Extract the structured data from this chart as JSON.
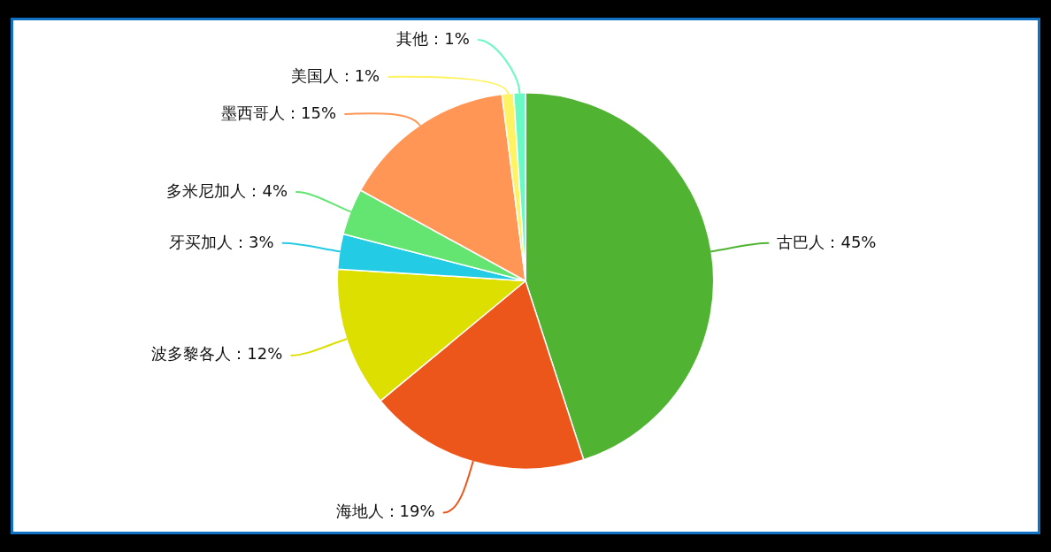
{
  "chart_data": {
    "type": "pie",
    "categories": [
      "古巴人",
      "海地人",
      "波多黎各人",
      "牙买加人",
      "多米尼加人",
      "墨西哥人",
      "美国人",
      "其他"
    ],
    "values": [
      45,
      19,
      12,
      3,
      4,
      15,
      1,
      1
    ],
    "colors": [
      "#50b432",
      "#ed561b",
      "#dddf00",
      "#24cbe5",
      "#64e572",
      "#ff9655",
      "#fff263",
      "#6af9c4"
    ],
    "value_labels": [
      "45%",
      "19%",
      "12%",
      "3%",
      "4%",
      "15%",
      "1%",
      "1%"
    ]
  }
}
